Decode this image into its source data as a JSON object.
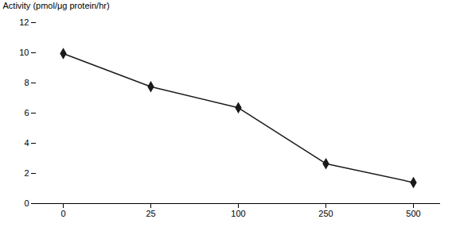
{
  "chart_data": {
    "type": "line",
    "categories": [
      "0",
      "25",
      "100",
      "250",
      "500"
    ],
    "values": [
      9.95,
      7.75,
      6.35,
      2.65,
      1.4
    ],
    "ylabel": "Activity (pmol/μg protein/hr)",
    "ylim": [
      0,
      12
    ],
    "yticks": [
      0,
      2,
      4,
      6,
      8,
      10,
      12
    ],
    "color": "#1a1a1a",
    "marker": "diamond",
    "grid": false
  }
}
